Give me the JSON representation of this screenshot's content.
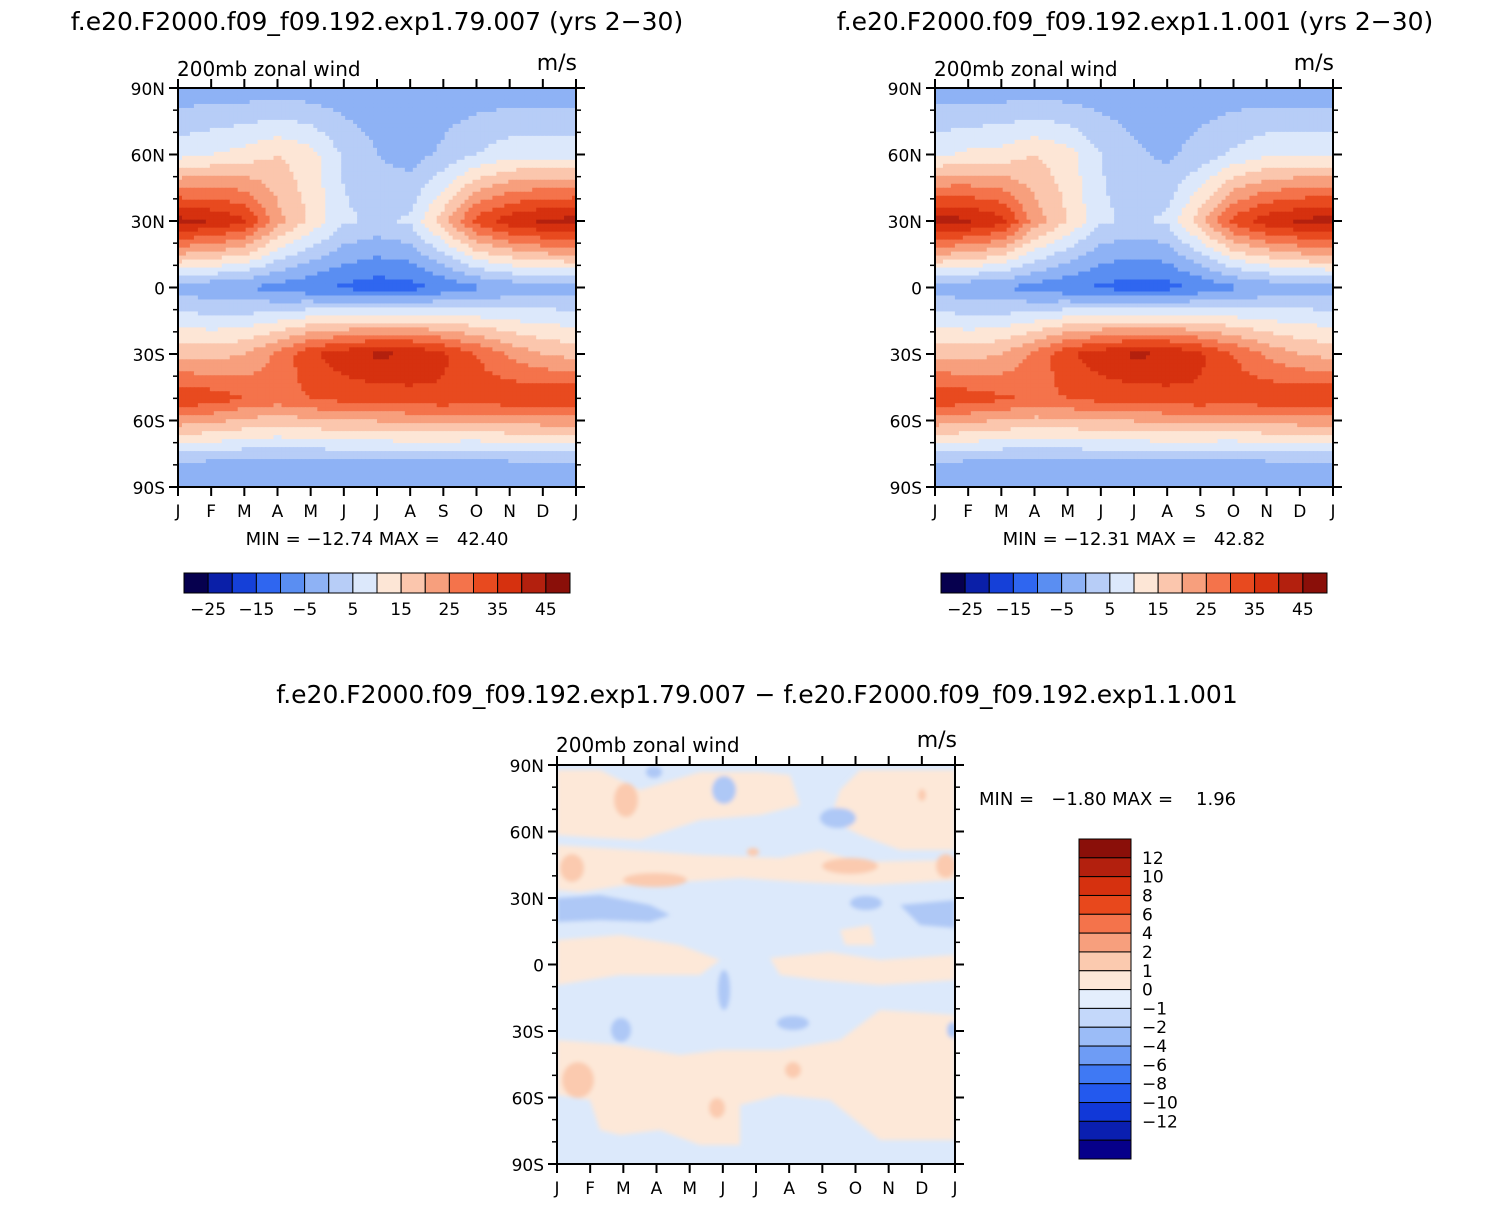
{
  "figure": {
    "top_left_title": "f.e20.F2000.f09_f09.192.exp1.79.007 (yrs 2−30)",
    "top_right_title": "f.e20.F2000.f09_f09.192.exp1.1.001 (yrs 2−30)",
    "bottom_title": "f.e20.F2000.f09_f09.192.exp1.79.007 − f.e20.F2000.f09_f09.192.exp1.1.001"
  },
  "chart_data": [
    {
      "type": "heatmap",
      "panel": "exp1.79.007",
      "variable_label": "200mb zonal wind",
      "units_label": "m/s",
      "x_ticks": [
        "J",
        "F",
        "M",
        "A",
        "M",
        "J",
        "J",
        "A",
        "S",
        "O",
        "N",
        "D",
        "J"
      ],
      "y_ticks": [
        "90N",
        "60N",
        "30N",
        "0",
        "30S",
        "60S",
        "90S"
      ],
      "stats": "MIN = −12.74 MAX =   42.40",
      "colorbar": {
        "colors": [
          "#06004e",
          "#0a1fa8",
          "#1540d8",
          "#2f66f0",
          "#5a8ef2",
          "#8eb2f5",
          "#b7cdf7",
          "#dce8fb",
          "#fde6d6",
          "#fbc6ad",
          "#f79f7d",
          "#f4734b",
          "#e84a1f",
          "#d6310f",
          "#b3200e",
          "#8a0f09"
        ],
        "tick_labels": [
          "−25",
          "−15",
          "−5",
          "5",
          "15",
          "25",
          "35",
          "45"
        ]
      },
      "field": {
        "months": [
          "Jan",
          "Feb",
          "Mar",
          "Apr",
          "May",
          "Jun",
          "Jul",
          "Aug",
          "Sep",
          "Oct",
          "Nov",
          "Dec"
        ],
        "lat_60N": [
          8,
          10,
          12,
          15,
          12,
          4,
          0,
          -2,
          1,
          5,
          8,
          8
        ],
        "lat_30N": [
          42,
          40,
          36,
          22,
          14,
          6,
          4,
          6,
          18,
          32,
          38,
          41
        ],
        "lat_0": [
          -2,
          -4,
          -5,
          -7,
          -9,
          -11,
          -12.7,
          -12,
          -9,
          -6,
          -4,
          -2
        ],
        "lat_30S": [
          18,
          18,
          20,
          26,
          34,
          38,
          41,
          40,
          36,
          30,
          24,
          20
        ],
        "lat_50S": [
          35,
          33,
          30,
          28,
          30,
          32,
          32,
          33,
          34,
          33,
          34,
          35
        ],
        "lat_80S": [
          -2,
          -2,
          -3,
          -3,
          -3,
          -3,
          -3,
          -2,
          -3,
          -3,
          -2,
          -2
        ]
      }
    },
    {
      "type": "heatmap",
      "panel": "exp1.1.001",
      "variable_label": "200mb zonal wind",
      "units_label": "m/s",
      "x_ticks": [
        "J",
        "F",
        "M",
        "A",
        "M",
        "J",
        "J",
        "A",
        "S",
        "O",
        "N",
        "D",
        "J"
      ],
      "y_ticks": [
        "90N",
        "60N",
        "30N",
        "0",
        "30S",
        "60S",
        "90S"
      ],
      "stats": "MIN = −12.31 MAX =   42.82",
      "colorbar": {
        "colors": [
          "#06004e",
          "#0a1fa8",
          "#1540d8",
          "#2f66f0",
          "#5a8ef2",
          "#8eb2f5",
          "#b7cdf7",
          "#dce8fb",
          "#fde6d6",
          "#fbc6ad",
          "#f79f7d",
          "#f4734b",
          "#e84a1f",
          "#d6310f",
          "#b3200e",
          "#8a0f09"
        ],
        "tick_labels": [
          "−25",
          "−15",
          "−5",
          "5",
          "15",
          "25",
          "35",
          "45"
        ]
      },
      "field": {
        "months": [
          "Jan",
          "Feb",
          "Mar",
          "Apr",
          "May",
          "Jun",
          "Jul",
          "Aug",
          "Sep",
          "Oct",
          "Nov",
          "Dec"
        ],
        "lat_60N": [
          9,
          11,
          12,
          15,
          12,
          5,
          1,
          -1,
          2,
          6,
          9,
          9
        ],
        "lat_30N": [
          42.8,
          41,
          37,
          23,
          15,
          6,
          4,
          6,
          18,
          32,
          38,
          41
        ],
        "lat_0": [
          -2,
          -4,
          -5,
          -7,
          -9,
          -11,
          -12.3,
          -11.8,
          -9,
          -6,
          -4,
          -2
        ],
        "lat_30S": [
          18,
          18,
          20,
          26,
          34,
          38,
          41,
          40,
          36,
          30,
          24,
          20
        ],
        "lat_50S": [
          35,
          33,
          31,
          29,
          30,
          32,
          32,
          33,
          34,
          33,
          34,
          35
        ],
        "lat_80S": [
          -2,
          -2,
          -3,
          -3,
          -3,
          -3,
          -3,
          -2,
          -3,
          -3,
          -2,
          -2
        ]
      }
    },
    {
      "type": "heatmap",
      "panel": "difference",
      "variable_label": "200mb zonal wind",
      "units_label": "m/s",
      "x_ticks": [
        "J",
        "F",
        "M",
        "A",
        "M",
        "J",
        "J",
        "A",
        "S",
        "O",
        "N",
        "D",
        "J"
      ],
      "y_ticks": [
        "90N",
        "60N",
        "30N",
        "0",
        "30S",
        "60S",
        "90S"
      ],
      "stats": "MIN =   −1.80 MAX =    1.96",
      "colorbar": {
        "colors": [
          "#06008a",
          "#0a1fb0",
          "#1138d8",
          "#2359ee",
          "#3f79f4",
          "#6e9cf5",
          "#9bbcf7",
          "#c4d8fa",
          "#e4eefc",
          "#fde8d8",
          "#fbcaaf",
          "#f79f7d",
          "#f4734b",
          "#e8481c",
          "#d6310f",
          "#b3200e",
          "#8a0f09"
        ],
        "level_labels": [
          "12",
          "10",
          "8",
          "6",
          "4",
          "2",
          "1",
          "0",
          "−1",
          "−2",
          "−4",
          "−6",
          "−8",
          "−10",
          "−12"
        ]
      }
    }
  ]
}
